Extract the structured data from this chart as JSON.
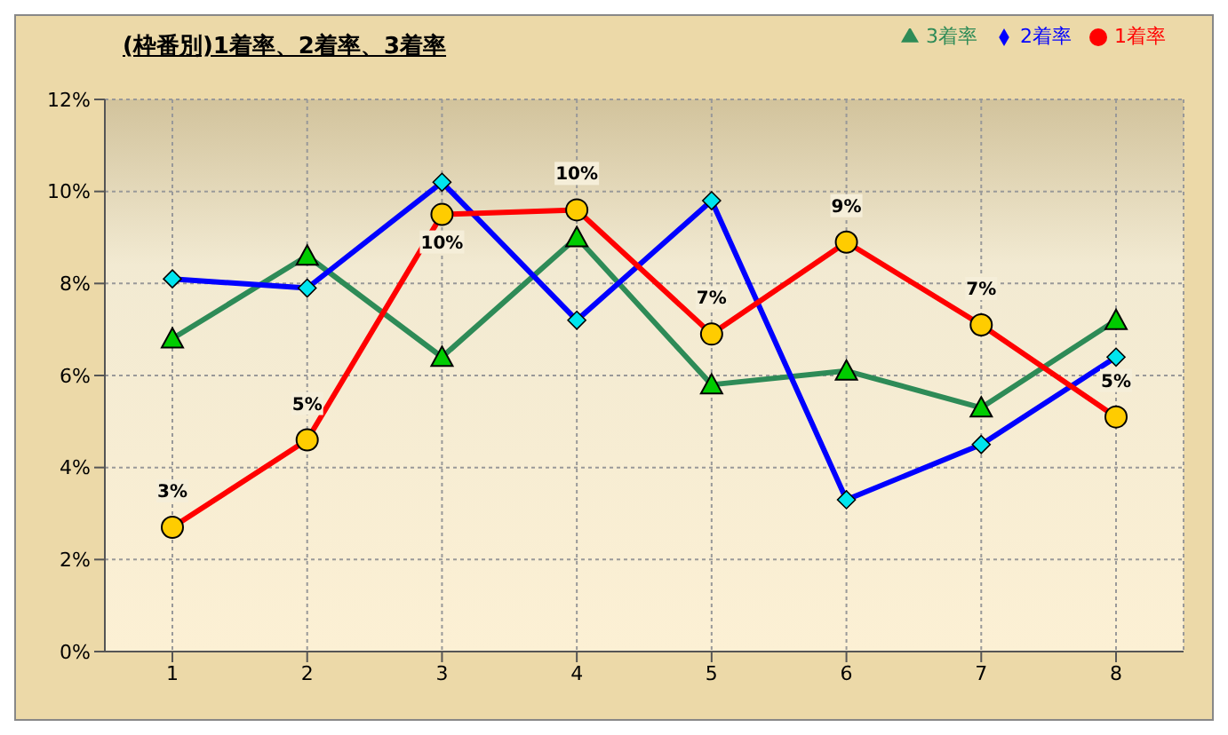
{
  "chart_data": {
    "type": "line",
    "title": "(枠番別)1着率、2着率、3着率",
    "categories": [
      "1",
      "2",
      "3",
      "4",
      "5",
      "6",
      "7",
      "8"
    ],
    "series": [
      {
        "name": "3着率",
        "color": "#2e8b57",
        "marker": "triangle",
        "values": [
          6.8,
          8.6,
          6.4,
          9.0,
          5.8,
          6.1,
          5.3,
          7.2
        ]
      },
      {
        "name": "2着率",
        "color": "#0000ff",
        "marker": "diamond",
        "values": [
          8.1,
          7.9,
          10.2,
          7.2,
          9.8,
          3.3,
          4.5,
          6.4
        ]
      },
      {
        "name": "1着率",
        "color": "#ff0000",
        "marker": "circle",
        "values": [
          2.7,
          4.6,
          9.5,
          9.6,
          6.9,
          8.9,
          7.1,
          5.1
        ],
        "value_labels": [
          "3%",
          "5%",
          "10%",
          "10%",
          "7%",
          "9%",
          "7%",
          "5%"
        ]
      }
    ],
    "ylim": [
      0,
      12
    ],
    "yticks": [
      {
        "value": 0,
        "label": "0%"
      },
      {
        "value": 2,
        "label": "2%"
      },
      {
        "value": 4,
        "label": "4%"
      },
      {
        "value": 6,
        "label": "6%"
      },
      {
        "value": 8,
        "label": "8%"
      },
      {
        "value": 10,
        "label": "10%"
      },
      {
        "value": 12,
        "label": "12%"
      }
    ],
    "grid": true,
    "legend": "top right"
  }
}
